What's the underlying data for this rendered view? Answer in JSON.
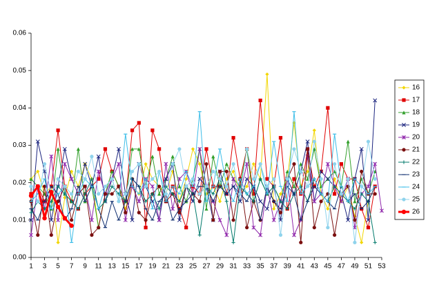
{
  "chart_data": {
    "type": "line",
    "x": [
      1,
      2,
      3,
      4,
      5,
      6,
      7,
      8,
      9,
      10,
      11,
      12,
      13,
      14,
      15,
      16,
      17,
      18,
      19,
      20,
      21,
      22,
      23,
      24,
      25,
      26,
      27,
      28,
      29,
      30,
      31,
      32,
      33,
      34,
      35,
      36,
      37,
      38,
      39,
      40,
      41,
      42,
      43,
      44,
      45,
      46,
      47,
      48,
      49,
      50,
      51,
      52,
      53
    ],
    "xlim": [
      1,
      53
    ],
    "xticks": [
      1,
      3,
      5,
      7,
      9,
      11,
      13,
      15,
      17,
      19,
      21,
      23,
      25,
      27,
      29,
      31,
      33,
      35,
      37,
      39,
      41,
      43,
      45,
      47,
      49,
      51,
      53
    ],
    "ylim": [
      0,
      0.06
    ],
    "yticks": [
      {
        "value": 0,
        "label": "0.00"
      },
      0.01,
      0.02,
      0.03,
      0.04,
      0.05,
      0.06
    ],
    "legend": "right",
    "series": [
      {
        "name": "16",
        "color": "#f2d600",
        "marker": "diamond",
        "values": [
          0.021,
          0.023,
          0.017,
          0.019,
          0.004,
          0.016,
          0.023,
          0.019,
          0.025,
          0.021,
          0.008,
          0.017,
          0.023,
          0.019,
          0.013,
          0.019,
          0.017,
          0.025,
          0.021,
          0.019,
          0.017,
          0.023,
          0.015,
          0.021,
          0.029,
          0.025,
          0.017,
          0.019,
          0.015,
          0.021,
          0.023,
          0.017,
          0.019,
          0.025,
          0.021,
          0.049,
          0.013,
          0.017,
          0.021,
          0.036,
          0.019,
          0.023,
          0.034,
          0.017,
          0.013,
          0.021,
          0.015,
          0.019,
          0.011,
          0.004,
          0.015,
          0.019,
          null
        ]
      },
      {
        "name": "17",
        "color": "#e00000",
        "marker": "square",
        "values": [
          0.017,
          0.019,
          0.015,
          0.019,
          0.034,
          0.019,
          0.015,
          0.013,
          0.017,
          0.019,
          0.021,
          0.029,
          0.023,
          0.019,
          0.015,
          0.034,
          0.036,
          0.008,
          0.034,
          0.029,
          0.015,
          0.019,
          0.013,
          0.008,
          0.019,
          0.017,
          0.029,
          0.019,
          0.019,
          0.017,
          0.032,
          0.021,
          0.029,
          0.017,
          0.042,
          0.021,
          0.019,
          0.032,
          0.013,
          0.021,
          0.017,
          0.029,
          0.019,
          0.023,
          0.04,
          0.017,
          0.025,
          0.021,
          0.021,
          0.013,
          0.008,
          0.019,
          null
        ]
      },
      {
        "name": "18",
        "color": "#33a02c",
        "marker": "triangle",
        "values": [
          0.021,
          0.019,
          0.017,
          0.013,
          0.029,
          0.017,
          0.015,
          0.029,
          0.015,
          0.019,
          0.008,
          0.017,
          0.023,
          0.019,
          0.015,
          0.029,
          0.029,
          0.019,
          0.027,
          0.017,
          0.021,
          0.027,
          0.019,
          0.015,
          0.021,
          0.029,
          0.013,
          0.027,
          0.019,
          0.025,
          0.021,
          0.019,
          0.029,
          0.015,
          0.021,
          0.017,
          0.019,
          0.015,
          0.023,
          0.019,
          0.025,
          0.021,
          0.029,
          0.019,
          0.021,
          0.023,
          0.019,
          0.031,
          0.015,
          0.021,
          0.017,
          0.023,
          null
        ]
      },
      {
        "name": "19",
        "color": "#1a237e",
        "marker": "x",
        "values": [
          0.01,
          0.031,
          0.023,
          0.01,
          0.019,
          0.029,
          0.021,
          0.017,
          0.025,
          0.019,
          0.027,
          0.015,
          0.021,
          0.029,
          0.017,
          0.01,
          0.025,
          0.019,
          0.015,
          0.01,
          0.021,
          0.025,
          0.01,
          0.019,
          0.015,
          0.021,
          0.019,
          0.01,
          0.023,
          0.017,
          0.019,
          0.015,
          0.021,
          0.019,
          0.015,
          0.013,
          0.019,
          0.01,
          0.021,
          0.017,
          0.023,
          0.031,
          0.015,
          0.023,
          0.021,
          0.019,
          0.017,
          0.01,
          0.021,
          0.029,
          0.01,
          0.042,
          null
        ]
      },
      {
        "name": "20",
        "color": "#8e24aa",
        "marker": "star",
        "values": [
          0.006,
          0.019,
          0.013,
          0.027,
          0.01,
          0.025,
          0.021,
          0.017,
          0.019,
          0.01,
          0.023,
          0.017,
          0.021,
          0.025,
          0.01,
          0.019,
          0.015,
          0.021,
          0.019,
          0.01,
          0.025,
          0.013,
          0.021,
          0.023,
          0.017,
          0.029,
          0.019,
          0.015,
          0.01,
          0.006,
          0.021,
          0.017,
          0.025,
          0.008,
          0.006,
          0.019,
          0.01,
          0.015,
          0.021,
          0.006,
          0.01,
          0.027,
          0.015,
          0.017,
          0.025,
          0.019,
          0.015,
          0.021,
          0.008,
          0.017,
          0.019,
          0.025,
          0.0125
        ]
      },
      {
        "name": "21",
        "color": "#7b1010",
        "marker": "circle",
        "values": [
          0.015,
          0.006,
          0.019,
          0.006,
          0.015,
          0.019,
          0.01,
          0.017,
          0.019,
          0.006,
          0.008,
          0.017,
          0.017,
          0.019,
          0.012,
          0.021,
          0.012,
          0.01,
          0.017,
          0.019,
          0.015,
          0.017,
          0.012,
          0.019,
          0.017,
          0.015,
          0.025,
          0.01,
          0.023,
          0.023,
          0.01,
          0.021,
          0.008,
          0.015,
          0.01,
          0.019,
          0.015,
          0.012,
          0.021,
          0.025,
          0.004,
          0.029,
          0.008,
          0.015,
          0.017,
          0.006,
          0.017,
          0.019,
          0.01,
          0.023,
          0.017,
          0.017,
          null
        ]
      },
      {
        "name": "22",
        "color": "#00796b",
        "marker": "plus",
        "values": [
          0.012,
          0.015,
          0.013,
          0.015,
          0.019,
          0.017,
          0.015,
          0.013,
          0.017,
          0.021,
          0.013,
          0.015,
          0.019,
          0.017,
          0.015,
          0.021,
          0.019,
          0.015,
          0.017,
          0.013,
          0.019,
          0.017,
          0.015,
          0.019,
          0.017,
          0.006,
          0.019,
          0.017,
          0.021,
          0.015,
          0.004,
          0.019,
          0.017,
          0.015,
          0.021,
          0.017,
          0.019,
          0.015,
          0.013,
          0.017,
          0.019,
          0.015,
          0.021,
          0.017,
          0.015,
          0.019,
          0.017,
          0.015,
          0.013,
          0.017,
          0.015,
          0.004,
          null
        ]
      },
      {
        "name": "23",
        "color": "#0d2c6e",
        "marker": "dash",
        "values": [
          0.013,
          0.01,
          0.015,
          0.019,
          0.017,
          0.01,
          0.013,
          0.019,
          0.015,
          0.019,
          0.013,
          0.008,
          0.015,
          0.01,
          0.015,
          0.021,
          0.019,
          0.013,
          0.01,
          0.015,
          0.017,
          0.01,
          0.013,
          0.015,
          0.017,
          0.019,
          0.019,
          0.015,
          0.019,
          0.017,
          0.019,
          0.017,
          0.015,
          0.019,
          0.01,
          0.019,
          0.015,
          0.013,
          0.019,
          0.017,
          0.01,
          0.015,
          0.019,
          0.017,
          0.015,
          0.013,
          0.019,
          0.015,
          0.017,
          0.013,
          0.015,
          0.019,
          null
        ]
      },
      {
        "name": "24",
        "color": "#3cbde8",
        "marker": "dash",
        "values": [
          0.015,
          0.017,
          0.021,
          0.013,
          0.017,
          0.019,
          0.004,
          0.017,
          0.021,
          0.019,
          0.013,
          0.019,
          0.021,
          0.015,
          0.033,
          0.019,
          0.017,
          0.021,
          0.013,
          0.023,
          0.015,
          0.019,
          0.017,
          0.023,
          0.019,
          0.039,
          0.015,
          0.019,
          0.029,
          0.019,
          0.015,
          0.021,
          0.017,
          0.019,
          0.025,
          0.017,
          0.031,
          0.019,
          0.015,
          0.039,
          0.017,
          0.019,
          0.021,
          0.017,
          0.015,
          0.033,
          0.019,
          0.015,
          0.021,
          0.019,
          0.017,
          0.019,
          null
        ]
      },
      {
        "name": "25",
        "color": "#8fd3ec",
        "marker": "circle",
        "values": [
          0.019,
          0.015,
          0.025,
          0.017,
          0.021,
          0.019,
          0.017,
          0.023,
          0.021,
          0.027,
          0.017,
          0.019,
          0.021,
          0.015,
          0.017,
          0.023,
          0.025,
          0.019,
          0.021,
          0.023,
          0.017,
          0.025,
          0.029,
          0.019,
          0.021,
          0.017,
          0.019,
          0.023,
          0.021,
          0.019,
          0.025,
          0.017,
          0.029,
          0.021,
          0.025,
          0.019,
          0.021,
          0.006,
          0.021,
          0.029,
          0.023,
          0.019,
          0.031,
          0.021,
          0.008,
          0.025,
          0.017,
          0.021,
          0.004,
          0.019,
          0.031,
          0.021,
          null
        ]
      },
      {
        "name": "26",
        "color": "#ff0000",
        "marker": "circle",
        "width": 3,
        "values": [
          0.0165,
          0.019,
          0.0105,
          0.0175,
          0.0135,
          0.0105,
          0.0085,
          null,
          null,
          null,
          null,
          null,
          null,
          null,
          null,
          null,
          null,
          null,
          null,
          null,
          null,
          null,
          null,
          null,
          null,
          null,
          null,
          null,
          null,
          null,
          null,
          null,
          null,
          null,
          null,
          null,
          null,
          null,
          null,
          null,
          null,
          null,
          null,
          null,
          null,
          null,
          null,
          null,
          null,
          null,
          null,
          null,
          null
        ]
      }
    ]
  }
}
